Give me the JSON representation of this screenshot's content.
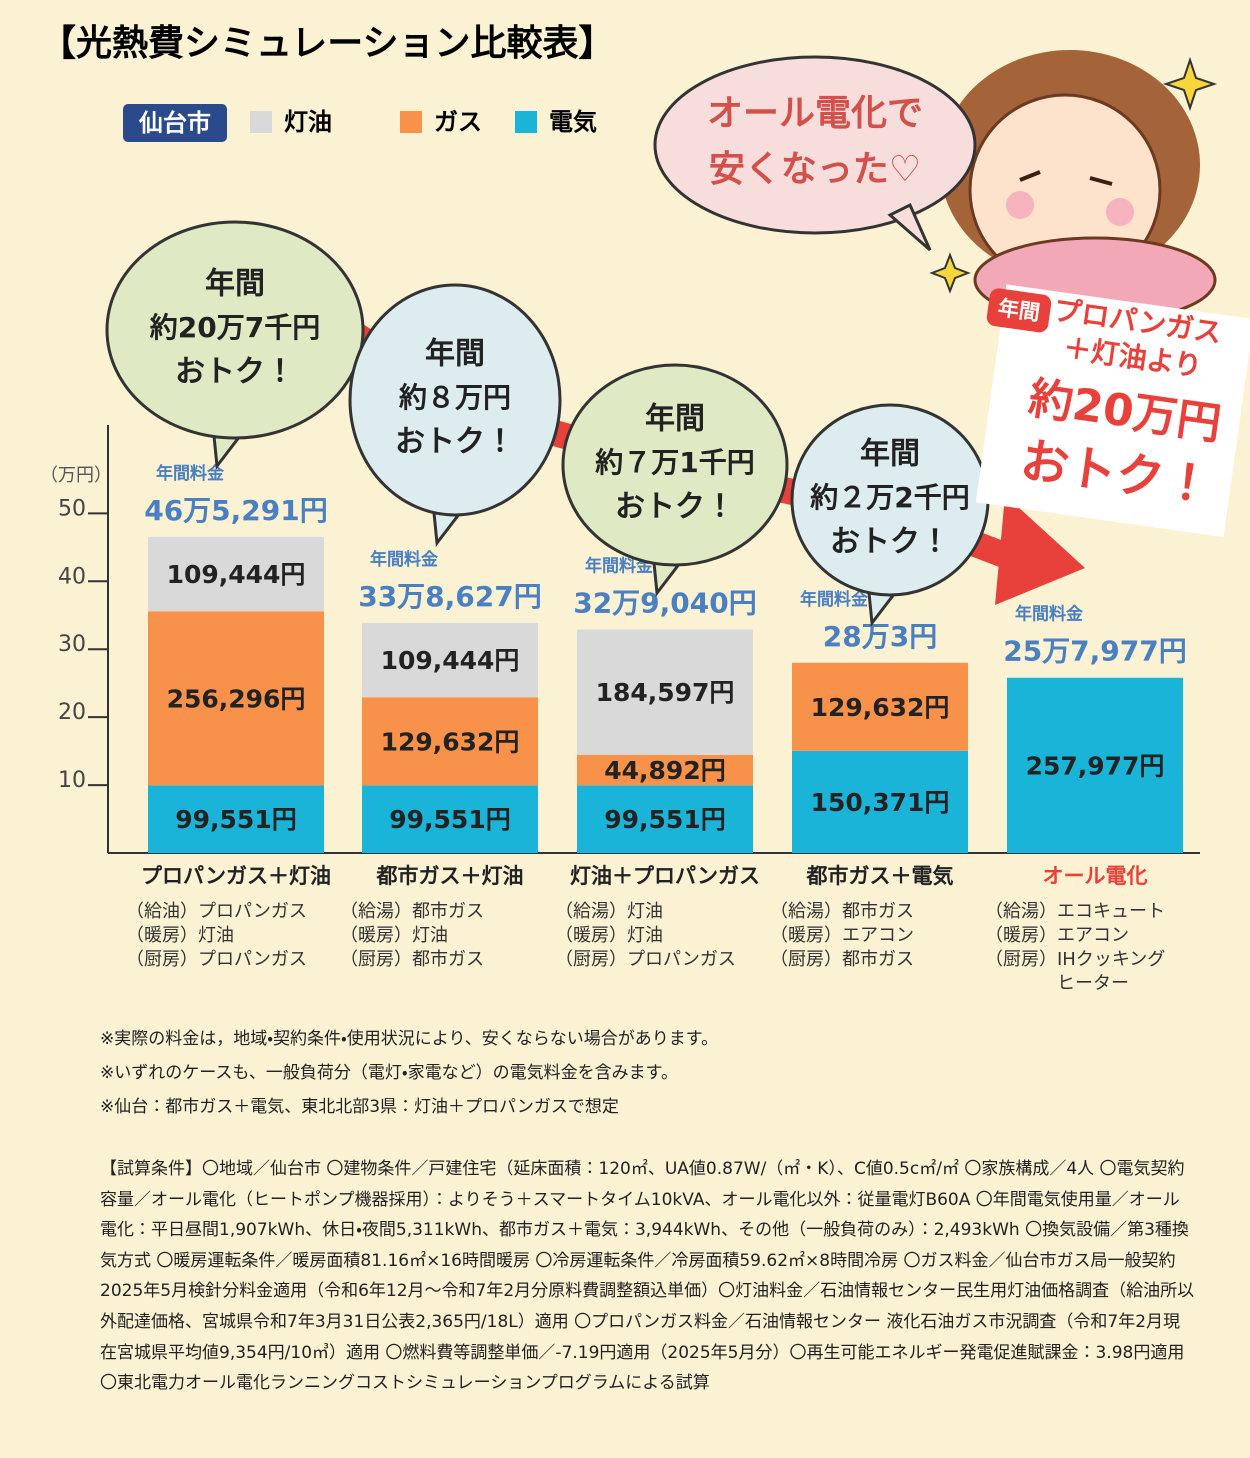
{
  "title": "【光熱費シミュレーション比較表】",
  "chart_data": {
    "type": "bar",
    "stacked": true,
    "region": "仙台市",
    "y_unit": "（万円）",
    "ylim": [
      0,
      63
    ],
    "yticks": [
      10,
      20,
      30,
      40,
      50
    ],
    "categories": [
      "プロパンガス＋灯油",
      "都市ガス＋灯油",
      "灯油＋プロパンガス",
      "都市ガス＋電気",
      "オール電化"
    ],
    "category_details": [
      [
        "（給油）プロパンガス",
        "（暖房）灯油",
        "（厨房）プロパンガス"
      ],
      [
        "（給湯）都市ガス",
        "（暖房）灯油",
        "（厨房）都市ガス"
      ],
      [
        "（給湯）灯油",
        "（暖房）灯油",
        "（厨房）プロパンガス"
      ],
      [
        "（給湯）都市ガス",
        "（暖房）エアコン",
        "（厨房）都市ガス"
      ],
      [
        "（給湯）エコキュート",
        "（暖房）エアコン",
        "（厨房）IHクッキング",
        "ヒーター"
      ]
    ],
    "series": [
      {
        "name": "灯油",
        "color": "#d9d9d9",
        "values": [
          10.9444,
          10.9444,
          18.4597,
          null,
          null
        ],
        "value_labels": [
          "109,444円",
          "109,444円",
          "184,597円",
          null,
          null
        ]
      },
      {
        "name": "ガス",
        "color": "#f8914a",
        "values": [
          25.6296,
          12.9632,
          4.4892,
          12.9632,
          null
        ],
        "value_labels": [
          "256,296円",
          "129,632円",
          "44,892円",
          "129,632円",
          null
        ]
      },
      {
        "name": "電気",
        "color": "#1ab4d8",
        "values": [
          9.9551,
          9.9551,
          9.9551,
          15.0371,
          25.7977
        ],
        "value_labels": [
          "99,551円",
          "99,551円",
          "99,551円",
          "150,371円",
          "257,977円"
        ]
      }
    ],
    "totals": {
      "caption": "年間料金",
      "values": [
        46.5291,
        33.8627,
        32.904,
        28.0003,
        25.7977
      ],
      "value_labels": [
        "46万5,291円",
        "33万8,627円",
        "32万9,040円",
        "28万3円",
        "25万7,977円"
      ]
    },
    "savings": [
      [
        "年間",
        "約20万7千円",
        "おトク！"
      ],
      [
        "年間",
        "約８万円",
        "おトク！"
      ],
      [
        "年間",
        "約７万1千円",
        "おトク！"
      ],
      [
        "年間",
        "約２万2千円",
        "おトク！"
      ]
    ]
  },
  "speech": [
    "オール電化で",
    "安くなった♡"
  ],
  "callout": {
    "badge": "年間",
    "lines": [
      "プロパンガス",
      "＋灯油より",
      "約20万円",
      "おトク！"
    ]
  },
  "notes": [
    "※実際の料金は，地域・契約条件・使用状況により、安くならない場合があります。",
    "※いずれのケースも、一般負荷分（電灯・家電など）の電気料金を含みます。",
    "※仙台：都市ガス＋電気、東北北部3県：灯油＋プロパンガスで想定"
  ],
  "conditions": "【試算条件】〇地域／仙台市 〇建物条件／戸建住宅（延床面積：120㎡、UA値0.87W/（㎡・K）、C値0.5c㎡/㎡ 〇家族構成／4人 〇電気契約容量／オール電化（ヒートポンプ機器採用）：よりそう＋スマートタイム10kVA、オール電化以外：従量電灯B60A 〇年間電気使用量／オール電化：平日昼間1,907kWh、休日・夜間5,311kWh、都市ガス＋電気：3,944kWh、その他（一般負荷のみ）：2,493kWh 〇換気設備／第3種換気方式 〇暖房運転条件／暖房面積81.16㎡×16時間暖房 〇冷房運転条件／冷房面積59.62㎡×8時間冷房 〇ガス料金／仙台市ガス局一般契約2025年5月検針分料金適用（令和6年12月～令和7年2月分原料費調整額込単価）〇灯油料金／石油情報センター民生用灯油価格調査（給油所以外配達価格、宮城県令和7年3月31日公表2,365円/18L）適用 〇プロパンガス料金／石油情報センター 液化石油ガス市況調査（令和7年2月現在宮城県平均値9,354円/10㎥）適用 〇燃料費等調整単価／-7.19円適用（2025年5月分）〇再生可能エネルギー発電促進賦課金：3.98円適用 〇東北電力オール電化ランニングコストシミュレーションプログラムによる試算"
}
